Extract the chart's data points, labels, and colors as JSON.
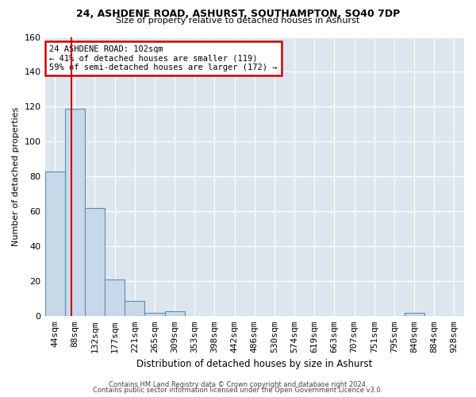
{
  "title_line1": "24, ASHDENE ROAD, ASHURST, SOUTHAMPTON, SO40 7DP",
  "title_line2": "Size of property relative to detached houses in Ashurst",
  "xlabel": "Distribution of detached houses by size in Ashurst",
  "ylabel": "Number of detached properties",
  "footer_line1": "Contains HM Land Registry data © Crown copyright and database right 2024.",
  "footer_line2": "Contains public sector information licensed under the Open Government Licence v3.0.",
  "bins": [
    "44sqm",
    "88sqm",
    "132sqm",
    "177sqm",
    "221sqm",
    "265sqm",
    "309sqm",
    "353sqm",
    "398sqm",
    "442sqm",
    "486sqm",
    "530sqm",
    "574sqm",
    "619sqm",
    "663sqm",
    "707sqm",
    "751sqm",
    "795sqm",
    "840sqm",
    "884sqm",
    "928sqm"
  ],
  "values": [
    83,
    119,
    62,
    21,
    9,
    2,
    3,
    0,
    0,
    0,
    0,
    0,
    0,
    0,
    0,
    0,
    0,
    0,
    2,
    0,
    0
  ],
  "property_size_sqm": 102,
  "annotation_title": "24 ASHDENE ROAD: 102sqm",
  "annotation_line1": "← 41% of detached houses are smaller (119)",
  "annotation_line2": "59% of semi-detached houses are larger (172) →",
  "bar_color": "#c8d8e8",
  "bar_edge_color": "#5b8db8",
  "vline_color": "#cc0000",
  "annotation_box_edge_color": "#cc0000",
  "background_color": "#ffffff",
  "plot_bg_color": "#dde6ef",
  "ylim": [
    0,
    160
  ],
  "yticks": [
    0,
    20,
    40,
    60,
    80,
    100,
    120,
    140,
    160
  ]
}
